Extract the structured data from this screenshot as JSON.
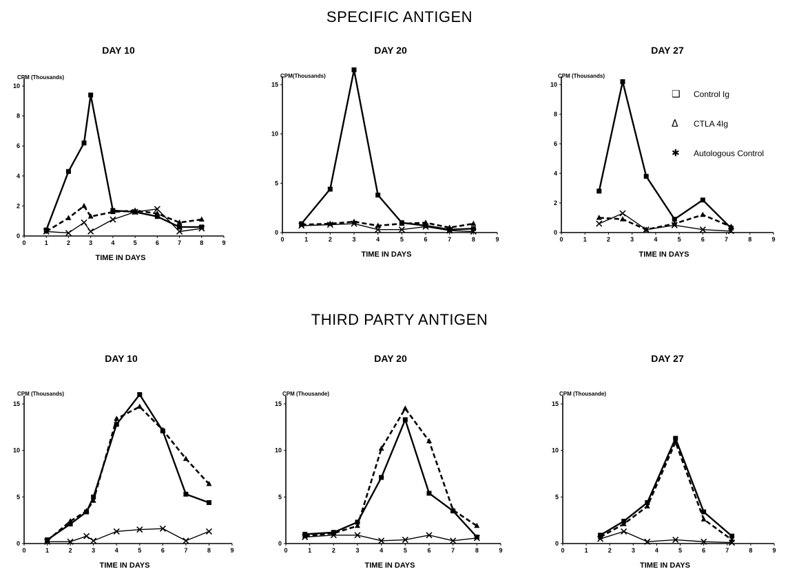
{
  "sections": [
    {
      "title": "SPECIFIC ANTIGEN"
    },
    {
      "title": "THIRD PARTY ANTIGEN"
    }
  ],
  "legend": [
    {
      "symbol": "❑",
      "label": "Control Ig"
    },
    {
      "symbol": "Δ",
      "label": "CTLA 4Ig"
    },
    {
      "symbol": "✱",
      "label": "Autologous Control"
    }
  ],
  "chart_data": [
    {
      "type": "line",
      "section": "SPECIFIC ANTIGEN",
      "title": "DAY 10",
      "xlabel": "TIME IN DAYS",
      "ylabel": "CPM (Thousands)",
      "xlim": [
        0,
        9
      ],
      "ylim": [
        0,
        10
      ],
      "xticks": [
        0,
        1,
        2,
        3,
        4,
        5,
        6,
        7,
        8,
        9
      ],
      "yticks": [
        0,
        2,
        4,
        6,
        8,
        10
      ],
      "series": [
        {
          "name": "Control Ig",
          "marker": "square",
          "style": "solid",
          "x": [
            1,
            2,
            2.7,
            3,
            4,
            5,
            6,
            7,
            8
          ],
          "y": [
            0.4,
            4.3,
            6.2,
            9.4,
            1.7,
            1.6,
            1.3,
            0.6,
            0.6
          ]
        },
        {
          "name": "CTLA 4Ig",
          "marker": "triangle",
          "style": "dashed",
          "x": [
            1,
            2,
            2.7,
            3,
            4,
            5,
            6,
            7,
            8
          ],
          "y": [
            0.3,
            1.2,
            2.0,
            1.3,
            1.6,
            1.7,
            1.5,
            0.9,
            1.1
          ]
        },
        {
          "name": "Autologous Control",
          "marker": "star",
          "style": "solid",
          "x": [
            1,
            2,
            2.7,
            3,
            4,
            5,
            6,
            7,
            8
          ],
          "y": [
            0.3,
            0.2,
            0.9,
            0.3,
            1.1,
            1.6,
            1.8,
            0.3,
            0.5
          ]
        }
      ]
    },
    {
      "type": "line",
      "section": "SPECIFIC ANTIGEN",
      "title": "DAY 20",
      "xlabel": "TIME IN DAYS",
      "ylabel": "CPM(Thousands)",
      "xlim": [
        0,
        9
      ],
      "ylim": [
        0,
        15
      ],
      "xticks": [
        0,
        1,
        2,
        3,
        4,
        5,
        6,
        7,
        8,
        9
      ],
      "yticks": [
        0,
        5,
        10,
        15
      ],
      "series": [
        {
          "name": "Control Ig",
          "marker": "square",
          "style": "solid",
          "x": [
            0.8,
            2,
            3,
            4,
            5,
            6,
            7,
            8
          ],
          "y": [
            0.9,
            4.4,
            16.5,
            3.8,
            1.0,
            0.7,
            0.3,
            0.4
          ]
        },
        {
          "name": "CTLA 4Ig",
          "marker": "triangle",
          "style": "dashed",
          "x": [
            0.8,
            2,
            3,
            4,
            5,
            6,
            7,
            8
          ],
          "y": [
            0.8,
            0.9,
            1.1,
            0.7,
            0.9,
            1.0,
            0.5,
            0.9
          ]
        },
        {
          "name": "Autologous Control",
          "marker": "star",
          "style": "solid",
          "x": [
            0.8,
            2,
            3,
            4,
            5,
            6,
            7,
            8
          ],
          "y": [
            0.7,
            0.8,
            0.9,
            0.3,
            0.3,
            0.6,
            0.2,
            0.1
          ]
        }
      ]
    },
    {
      "type": "line",
      "section": "SPECIFIC ANTIGEN",
      "title": "DAY 27",
      "xlabel": "TIME IN DAYS",
      "ylabel": "CPM (Thousands)",
      "xlim": [
        0,
        9
      ],
      "ylim": [
        0,
        10
      ],
      "xticks": [
        0,
        1,
        2,
        3,
        4,
        5,
        6,
        7,
        8,
        9
      ],
      "yticks": [
        0,
        2,
        4,
        6,
        8,
        10
      ],
      "series": [
        {
          "name": "Control Ig",
          "marker": "square",
          "style": "solid",
          "x": [
            1.6,
            2.6,
            3.6,
            4.8,
            6,
            7.2
          ],
          "y": [
            2.8,
            10.2,
            3.8,
            0.9,
            2.2,
            0.3
          ]
        },
        {
          "name": "CTLA 4Ig",
          "marker": "triangle",
          "style": "dashed",
          "x": [
            1.6,
            2.6,
            3.6,
            4.8,
            6,
            7.2
          ],
          "y": [
            1.0,
            0.9,
            0.2,
            0.6,
            1.2,
            0.4
          ]
        },
        {
          "name": "Autologous Control",
          "marker": "star",
          "style": "solid",
          "x": [
            1.6,
            2.6,
            3.6,
            4.8,
            6,
            7.2
          ],
          "y": [
            0.6,
            1.3,
            0.2,
            0.5,
            0.2,
            0.1
          ]
        }
      ]
    },
    {
      "type": "line",
      "section": "THIRD PARTY ANTIGEN",
      "title": "DAY 10",
      "xlabel": "TIME IN DAYS",
      "ylabel": "CPM (Thousands)",
      "xlim": [
        0,
        9
      ],
      "ylim": [
        0,
        15
      ],
      "xticks": [
        0,
        1,
        2,
        3,
        4,
        5,
        6,
        7,
        8,
        9
      ],
      "yticks": [
        0,
        5,
        10,
        15
      ],
      "series": [
        {
          "name": "Control Ig",
          "marker": "square",
          "style": "solid",
          "x": [
            1,
            2,
            2.7,
            3,
            4,
            5,
            6,
            7,
            8
          ],
          "y": [
            0.4,
            2.1,
            3.4,
            5.0,
            12.8,
            16.0,
            12.1,
            5.3,
            4.4
          ]
        },
        {
          "name": "CTLA 4Ig",
          "marker": "triangle",
          "style": "dashed",
          "x": [
            1,
            2,
            2.7,
            3,
            4,
            5,
            6,
            7,
            8
          ],
          "y": [
            0.3,
            2.4,
            3.5,
            4.6,
            13.4,
            14.7,
            12.2,
            9.1,
            6.4
          ]
        },
        {
          "name": "Autologous Control",
          "marker": "star",
          "style": "solid",
          "x": [
            1,
            2,
            2.7,
            3,
            4,
            5,
            6,
            7,
            8
          ],
          "y": [
            0.2,
            0.2,
            0.8,
            0.3,
            1.3,
            1.5,
            1.6,
            0.3,
            1.3
          ]
        }
      ]
    },
    {
      "type": "line",
      "section": "THIRD PARTY ANTIGEN",
      "title": "DAY 20",
      "xlabel": "TIME IN DAYS",
      "ylabel": "CPM (Thousande)",
      "xlim": [
        0,
        9
      ],
      "ylim": [
        0,
        15
      ],
      "xticks": [
        0,
        1,
        2,
        3,
        4,
        5,
        6,
        7,
        8,
        9
      ],
      "yticks": [
        0,
        5,
        10,
        15
      ],
      "series": [
        {
          "name": "Control Ig",
          "marker": "square",
          "style": "solid",
          "x": [
            0.8,
            2,
            3,
            4,
            5,
            6,
            7,
            8
          ],
          "y": [
            1.0,
            1.2,
            2.3,
            7.1,
            13.3,
            5.4,
            3.5,
            0.7
          ]
        },
        {
          "name": "CTLA 4Ig",
          "marker": "triangle",
          "style": "dashed",
          "x": [
            0.8,
            2,
            3,
            4,
            5,
            6,
            7,
            8
          ],
          "y": [
            0.8,
            1.1,
            1.9,
            10.2,
            14.5,
            11.0,
            3.6,
            1.9
          ]
        },
        {
          "name": "Autologous Control",
          "marker": "star",
          "style": "solid",
          "x": [
            0.8,
            2,
            3,
            4,
            5,
            6,
            7,
            8
          ],
          "y": [
            0.7,
            0.9,
            0.9,
            0.3,
            0.4,
            0.9,
            0.3,
            0.6
          ]
        }
      ]
    },
    {
      "type": "line",
      "section": "THIRD PARTY ANTIGEN",
      "title": "DAY 27",
      "xlabel": "TIME IN DAYS",
      "ylabel": "CPM (Thousande)",
      "xlim": [
        0,
        9
      ],
      "ylim": [
        0,
        15
      ],
      "xticks": [
        0,
        1,
        2,
        3,
        4,
        5,
        6,
        7,
        8,
        9
      ],
      "yticks": [
        0,
        5,
        10,
        15
      ],
      "series": [
        {
          "name": "Control Ig",
          "marker": "square",
          "style": "solid",
          "x": [
            1.6,
            2.6,
            3.6,
            4.8,
            6,
            7.2
          ],
          "y": [
            0.9,
            2.4,
            4.4,
            11.3,
            3.4,
            0.8
          ]
        },
        {
          "name": "CTLA 4Ig",
          "marker": "triangle",
          "style": "dashed",
          "x": [
            1.6,
            2.6,
            3.6,
            4.8,
            6,
            7.2
          ],
          "y": [
            0.7,
            2.1,
            4.0,
            10.9,
            2.6,
            0.4
          ]
        },
        {
          "name": "Autologous Control",
          "marker": "star",
          "style": "solid",
          "x": [
            1.6,
            2.6,
            3.6,
            4.8,
            6,
            7.2
          ],
          "y": [
            0.5,
            1.3,
            0.2,
            0.4,
            0.2,
            0.1
          ]
        }
      ]
    }
  ]
}
